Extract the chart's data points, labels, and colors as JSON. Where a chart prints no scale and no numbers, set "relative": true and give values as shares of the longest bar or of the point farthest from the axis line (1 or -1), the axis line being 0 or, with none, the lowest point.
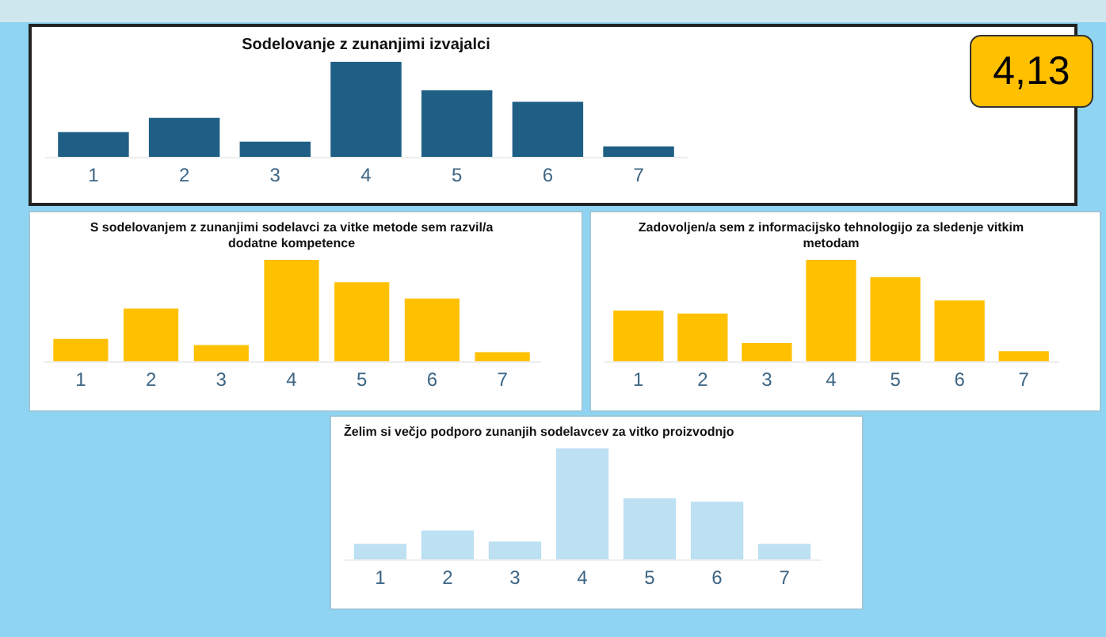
{
  "chart_data": [
    {
      "type": "bar",
      "title": "Sodelovanje z zunanjimi izvajalci",
      "categories": [
        "1",
        "2",
        "3",
        "4",
        "5",
        "6",
        "7"
      ],
      "values": [
        0.26,
        0.41,
        0.16,
        1,
        0.7,
        0.58,
        0.11
      ],
      "color": "#1f5f85",
      "relative": true
    },
    {
      "type": "other",
      "title": "4,13"
    },
    {
      "type": "bar",
      "title": "S sodelovanjem z zunanjimi sodelavci za vitke metode sem razvil/a dodatne kompetence",
      "categories": [
        "1",
        "2",
        "3",
        "4",
        "5",
        "6",
        "7"
      ],
      "values": [
        0.22,
        0.52,
        0.16,
        1,
        0.78,
        0.62,
        0.09
      ],
      "color": "#ffc000",
      "relative": true
    },
    {
      "type": "bar",
      "title": "Zadovoljen/a sem z informacijsko tehnologijo za sledenje vitkim metodam",
      "categories": [
        "1",
        "2",
        "3",
        "4",
        "5",
        "6",
        "7"
      ],
      "values": [
        0.5,
        0.47,
        0.18,
        1,
        0.83,
        0.6,
        0.1
      ],
      "color": "#ffc000",
      "relative": true
    },
    {
      "type": "bar",
      "title": "Želim si večjo podporo zunanjih sodelavcev za vitko proizvodnjo",
      "categories": [
        "1",
        "2",
        "3",
        "4",
        "5",
        "6",
        "7"
      ],
      "values": [
        0.14,
        0.26,
        0.16,
        1,
        0.55,
        0.52,
        0.14
      ],
      "color": "#bde0f3",
      "relative": true
    }
  ]
}
